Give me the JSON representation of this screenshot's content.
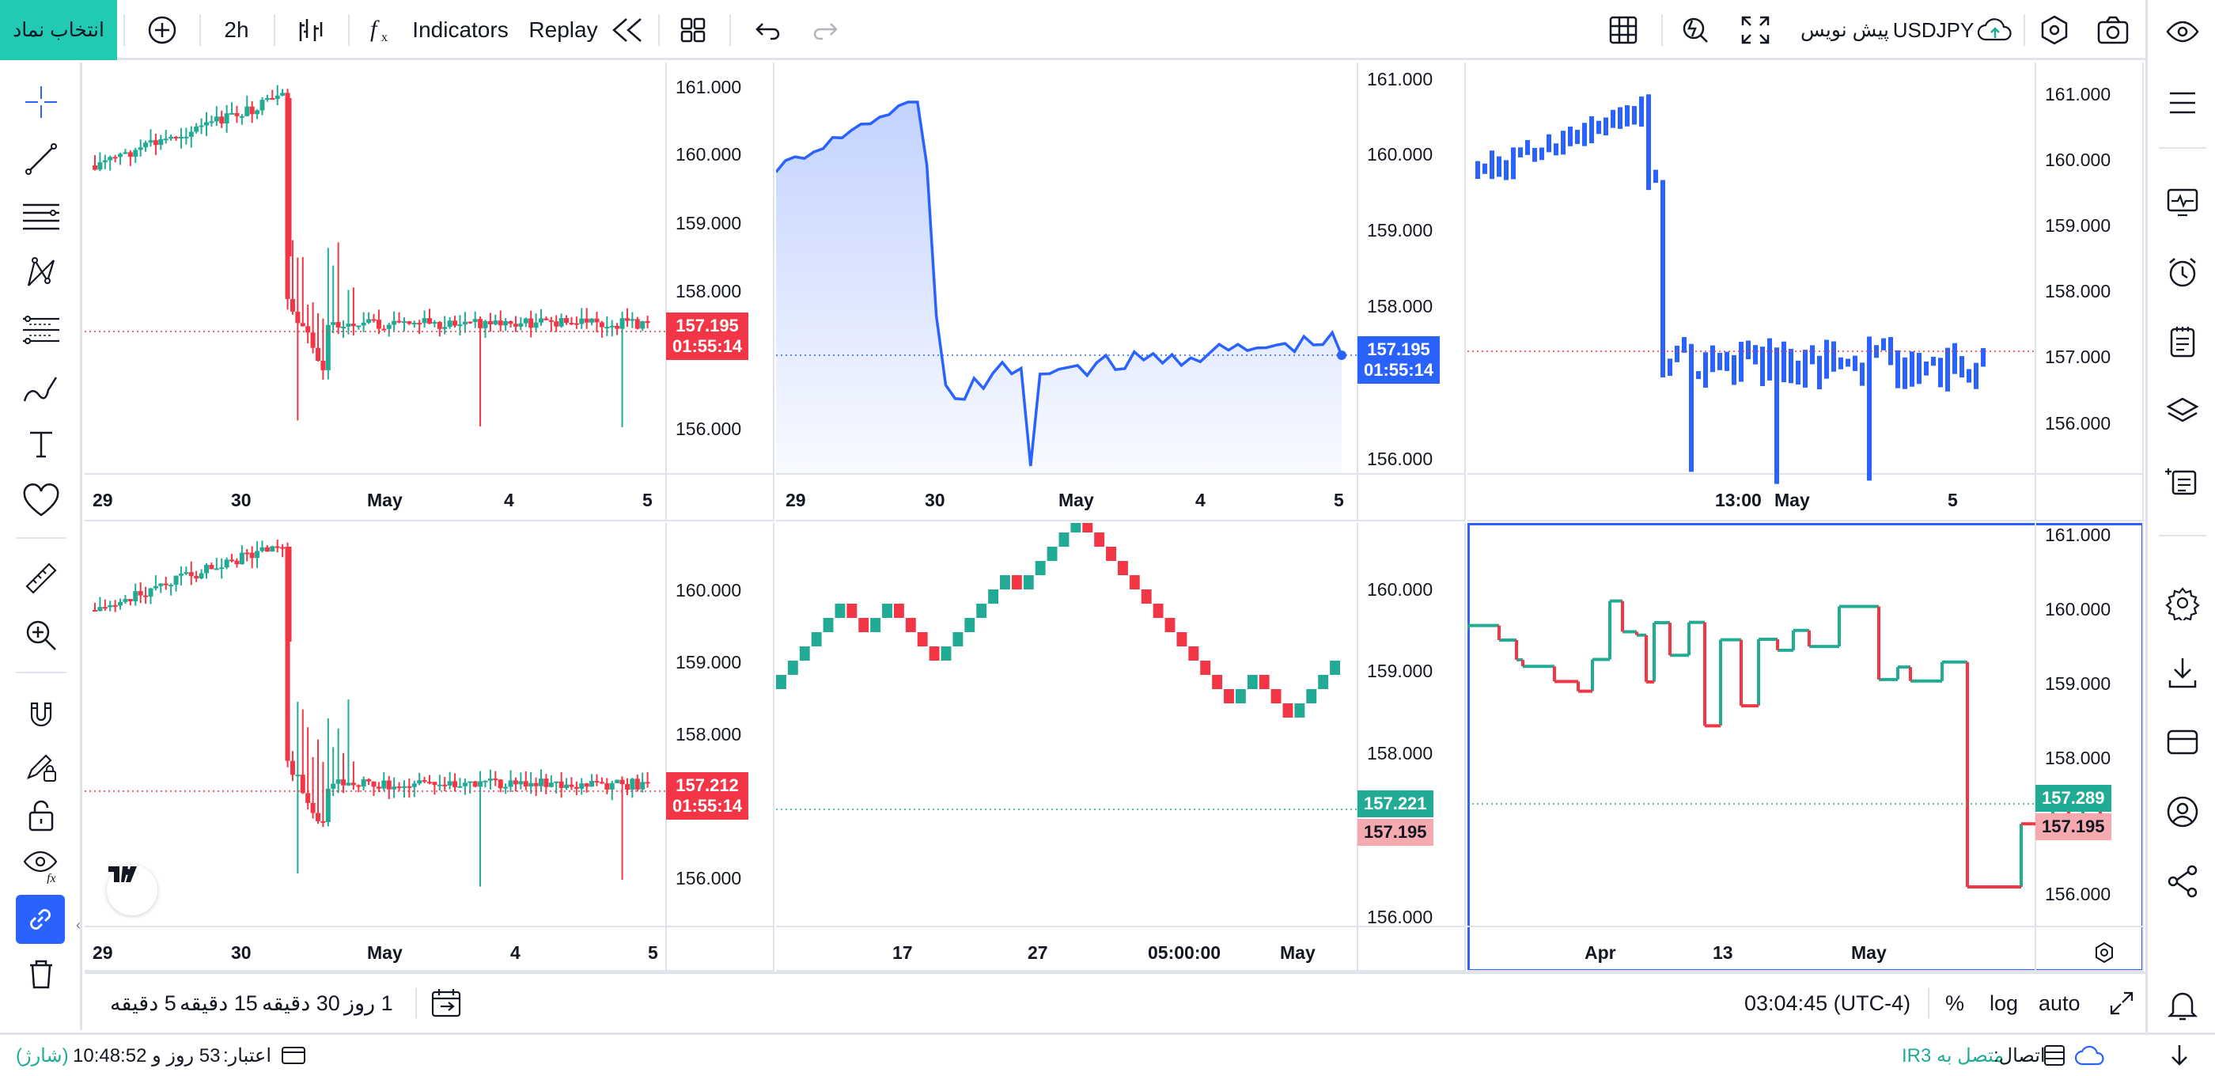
{
  "top": {
    "symbol_button": "انتخاب نماد",
    "interval": "2h",
    "indicators": "Indicators",
    "replay": "Replay",
    "symbol": "USDJPY",
    "draft": "پیش نویس"
  },
  "colors": {
    "up": "#22ab94",
    "down": "#f23645",
    "line": "#2962ff",
    "accent": "#22c9b3",
    "active": "#2962ff"
  },
  "bottom": {
    "ranges": [
      "5 دقیقه",
      "15 دقیقه",
      "30 دقیقه",
      "1 روز"
    ],
    "clock": "03:04:45 (UTC-4)",
    "pct": "%",
    "log": "log",
    "auto": "auto"
  },
  "status": {
    "credit_label": "اعتبار:",
    "credit_value": "53 روز و 10:48:52",
    "credit_charge": "(شارژ)",
    "connection_label": "اتصال:",
    "connection_value": "متصل به IR3"
  },
  "panes": [
    {
      "id": "p1",
      "type": "candles",
      "prices": [
        "161.000",
        "160.000",
        "159.000",
        "158.000",
        "156.000"
      ],
      "times": [
        "29",
        "30",
        "May",
        "4",
        "5"
      ],
      "tag_price": "157.195",
      "tag_time": "01:55:14",
      "tag_color": "down"
    },
    {
      "id": "p2",
      "type": "area",
      "prices": [
        "161.000",
        "160.000",
        "159.000",
        "158.000",
        "156.000"
      ],
      "times": [
        "29",
        "30",
        "May",
        "4",
        "5"
      ],
      "tag_price": "157.195",
      "tag_time": "01:55:14",
      "tag_color": "line"
    },
    {
      "id": "p3",
      "type": "hlc-bars",
      "prices": [
        "161.000",
        "160.000",
        "159.000",
        "158.000",
        "157.000",
        "156.000"
      ],
      "times": [
        "13:00",
        "May",
        "5"
      ]
    },
    {
      "id": "p4",
      "type": "candles",
      "prices": [
        "160.000",
        "159.000",
        "158.000",
        "156.000"
      ],
      "times": [
        "29",
        "30",
        "May",
        "4",
        "5"
      ],
      "tag_price": "157.212",
      "tag_time": "01:55:14",
      "tag_color": "down"
    },
    {
      "id": "p5",
      "type": "renko",
      "prices": [
        "160.000",
        "159.000",
        "158.000",
        "156.000"
      ],
      "times": [
        "17",
        "27",
        "05:00:00",
        "May"
      ],
      "tag_price": "157.221",
      "tag_price2": "157.195"
    },
    {
      "id": "p6",
      "type": "kagi",
      "prices": [
        "161.000",
        "160.000",
        "159.000",
        "158.000",
        "156.000"
      ],
      "times": [
        "Apr",
        "13",
        "May"
      ],
      "tag_price": "157.289",
      "tag_price2": "157.195"
    }
  ],
  "chart_data": [
    {
      "type": "candlestick",
      "title": "",
      "ylim": [
        155.5,
        161.0
      ],
      "x": [
        "29",
        "30",
        "May",
        "4",
        "5"
      ],
      "last": 157.195
    },
    {
      "type": "area",
      "title": "",
      "ylim": [
        155.8,
        161.0
      ],
      "x": [
        "29",
        "30",
        "May",
        "4",
        "5"
      ],
      "last": 157.195
    },
    {
      "type": "bar",
      "title": "",
      "ylim": [
        155.5,
        161.1
      ],
      "x": [
        "13:00",
        "May",
        "5"
      ],
      "last": 157.0
    },
    {
      "type": "candlestick",
      "title": "",
      "ylim": [
        155.5,
        160.8
      ],
      "x": [
        "29",
        "30",
        "May",
        "4",
        "5"
      ],
      "last": 157.212
    },
    {
      "type": "renko",
      "title": "",
      "ylim": [
        155.8,
        160.5
      ],
      "x": [
        "17",
        "27",
        "05:00:00",
        "May"
      ],
      "last": 157.221
    },
    {
      "type": "kagi",
      "title": "",
      "ylim": [
        155.8,
        161.0
      ],
      "x": [
        "Apr",
        "13",
        "May"
      ],
      "last": 157.289
    }
  ]
}
